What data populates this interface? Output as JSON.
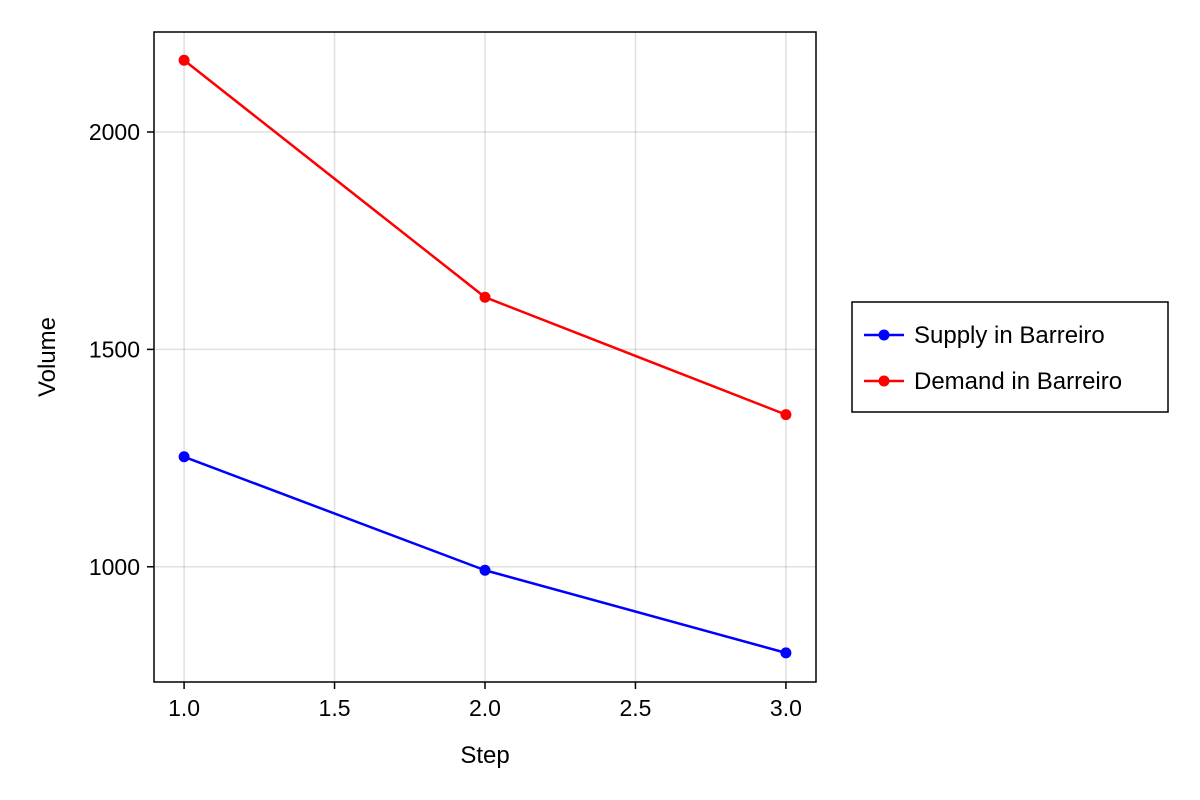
{
  "chart_data": {
    "type": "line",
    "xlabel": "Step",
    "ylabel": "Volume",
    "xlim": [
      0.9,
      3.1
    ],
    "ylim": [
      735,
      2230
    ],
    "xticks": [
      1.0,
      1.5,
      2.0,
      2.5,
      3.0
    ],
    "xtick_labels": [
      "1.0",
      "1.5",
      "2.0",
      "2.5",
      "3.0"
    ],
    "yticks": [
      1000,
      1500,
      2000
    ],
    "ytick_labels": [
      "1000",
      "1500",
      "2000"
    ],
    "grid": true,
    "legend_position": "outside-right",
    "series": [
      {
        "name": "Supply in Barreiro",
        "color": "#0000ff",
        "x": [
          1.0,
          2.0,
          3.0
        ],
        "y": [
          1253,
          992,
          802
        ]
      },
      {
        "name": "Demand in Barreiro",
        "color": "#ff0000",
        "x": [
          1.0,
          2.0,
          3.0
        ],
        "y": [
          2165,
          1620,
          1350
        ]
      }
    ]
  }
}
